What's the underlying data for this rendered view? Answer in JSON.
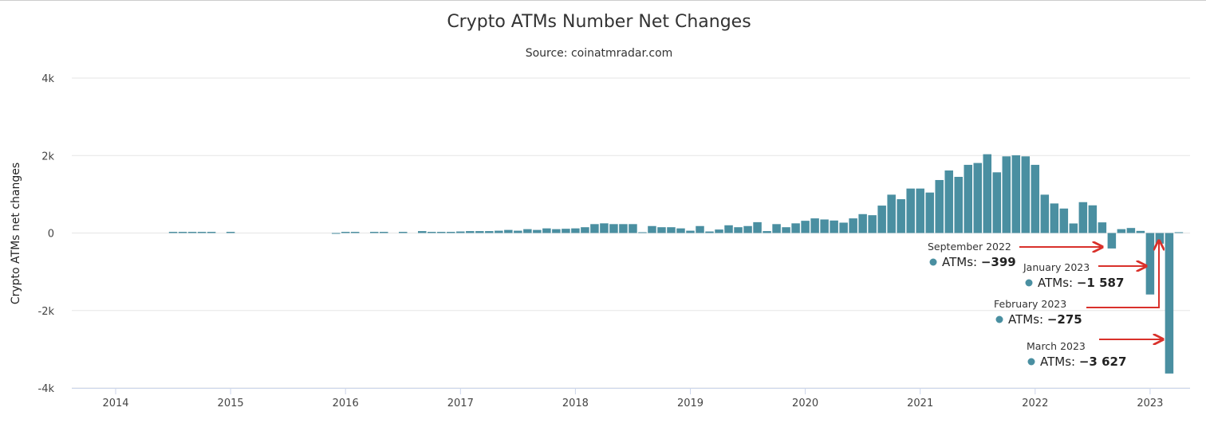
{
  "chart_data": {
    "type": "bar",
    "title": "Crypto ATMs Number Net Changes",
    "subtitle": "Source: coinatmradar.com",
    "xlabel": "",
    "ylabel": "Crypto ATMs net changes",
    "ylim": [
      -4000,
      4000
    ],
    "yticks": [
      "4k",
      "2k",
      "0",
      "-2k",
      "-4k"
    ],
    "ytick_values": [
      4000,
      2000,
      0,
      -2000,
      -4000
    ],
    "xticks": [
      "2014",
      "2015",
      "2016",
      "2017",
      "2018",
      "2019",
      "2020",
      "2021",
      "2022",
      "2023"
    ],
    "grid": true,
    "bar_color": "#4a8fa1",
    "annotation_color": "#d9312b",
    "start_month": "2014-01",
    "values": [
      0,
      0,
      0,
      0,
      0,
      0,
      30,
      30,
      30,
      30,
      30,
      0,
      30,
      0,
      0,
      0,
      0,
      0,
      0,
      0,
      0,
      0,
      0,
      -10,
      30,
      30,
      0,
      30,
      30,
      0,
      30,
      0,
      50,
      30,
      30,
      30,
      40,
      50,
      50,
      50,
      60,
      80,
      60,
      100,
      80,
      120,
      100,
      110,
      120,
      150,
      230,
      250,
      230,
      230,
      230,
      20,
      180,
      150,
      150,
      120,
      60,
      180,
      40,
      90,
      200,
      150,
      180,
      280,
      50,
      230,
      150,
      250,
      316,
      378,
      350,
      323,
      268,
      378,
      488,
      460,
      708,
      990,
      873,
      1148,
      1148,
      1045,
      1368,
      1615,
      1450,
      1760,
      1808,
      2034,
      1567,
      1979,
      2007,
      1979,
      1760,
      990,
      763,
      632,
      247,
      797,
      715,
      275,
      -399,
      100,
      130,
      55,
      -1587,
      -275,
      -3627,
      20
    ],
    "annotations": [
      {
        "date": "September 2022",
        "label": "ATMs:",
        "value": "−399"
      },
      {
        "date": "January 2023",
        "label": "ATMs:",
        "value": "−1 587"
      },
      {
        "date": "February 2023",
        "label": "ATMs:",
        "value": "−275"
      },
      {
        "date": "March 2023",
        "label": "ATMs:",
        "value": "−3 627"
      }
    ]
  }
}
